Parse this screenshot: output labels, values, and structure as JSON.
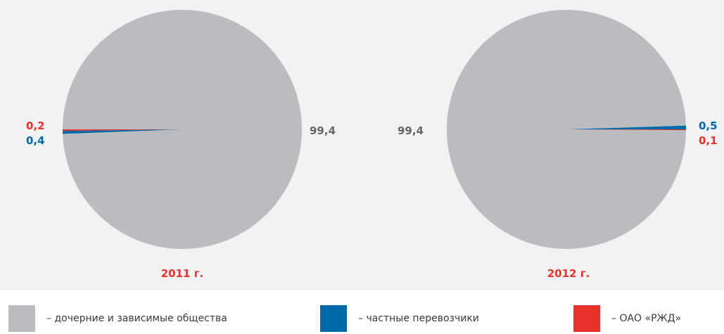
{
  "chart_data": [
    {
      "type": "pie",
      "title": "2011 г.",
      "series": [
        {
          "name": "– дочерние и зависимые общества",
          "value": 99.4,
          "label": "99,4",
          "color": "#bbbcbf"
        },
        {
          "name": "– частные перевозчики",
          "value": 0.4,
          "label": "0,4",
          "color": "#0069a8"
        },
        {
          "name": "– ОАО «РЖД»",
          "value": 0.2,
          "label": "0,2",
          "color": "#e8312a"
        }
      ]
    },
    {
      "type": "pie",
      "title": "2012 г.",
      "series": [
        {
          "name": "– дочерние и зависимые общества",
          "value": 99.4,
          "label": "99,4",
          "color": "#bbbcbf"
        },
        {
          "name": "– частные перевозчики",
          "value": 0.5,
          "label": "0,5",
          "color": "#0069a8"
        },
        {
          "name": "– ОАО «РЖД»",
          "value": 0.1,
          "label": "0,1",
          "color": "#e8312a"
        }
      ]
    }
  ],
  "legend": [
    {
      "label": "– дочерние и зависимые общества",
      "color": "#bbbcbf",
      "icon": "grey-swatch"
    },
    {
      "label": "– частные перевозчики",
      "color": "#0069a8",
      "icon": "blue-swatch"
    },
    {
      "label": "– ОАО «РЖД»",
      "color": "#e8312a",
      "icon": "red-swatch"
    }
  ]
}
